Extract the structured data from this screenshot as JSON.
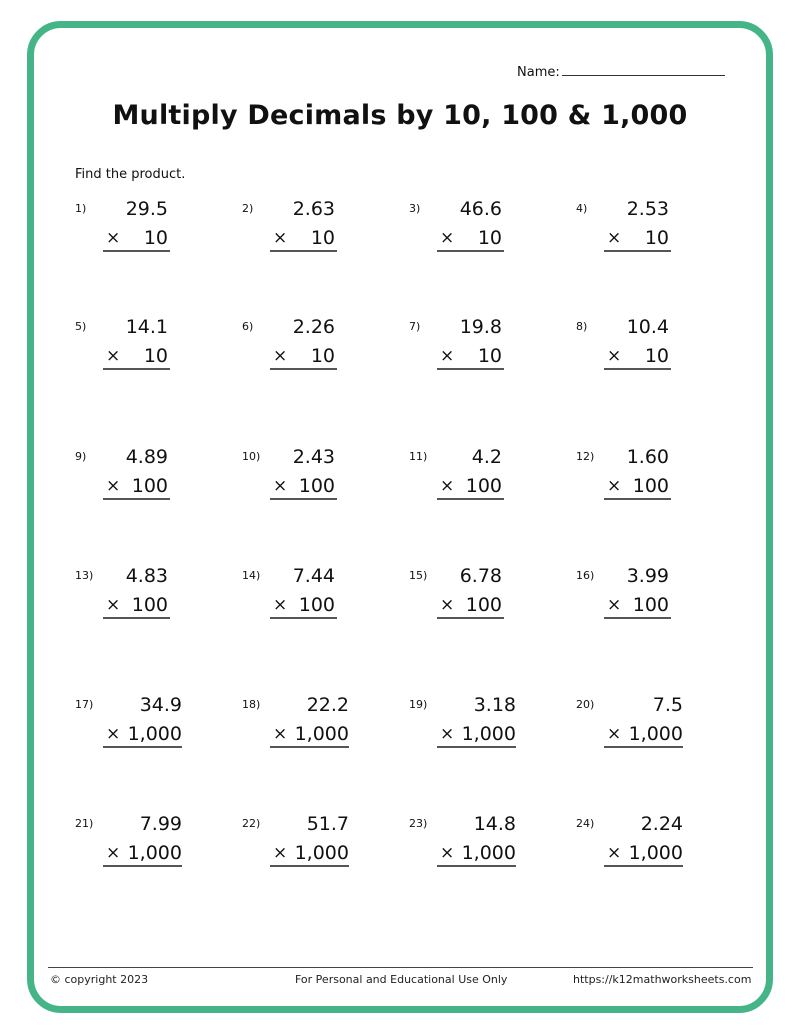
{
  "header": {
    "name_label": "Name:",
    "title": "Multiply Decimals by 10, 100 & 1,000",
    "instructions": "Find the product."
  },
  "operator": "×",
  "problems": [
    {
      "n": "1)",
      "a": "29.5",
      "b": "10"
    },
    {
      "n": "2)",
      "a": "2.63",
      "b": "10"
    },
    {
      "n": "3)",
      "a": "46.6",
      "b": "10"
    },
    {
      "n": "4)",
      "a": "2.53",
      "b": "10"
    },
    {
      "n": "5)",
      "a": "14.1",
      "b": "10"
    },
    {
      "n": "6)",
      "a": "2.26",
      "b": "10"
    },
    {
      "n": "7)",
      "a": "19.8",
      "b": "10"
    },
    {
      "n": "8)",
      "a": "10.4",
      "b": "10"
    },
    {
      "n": "9)",
      "a": "4.89",
      "b": "100"
    },
    {
      "n": "10)",
      "a": "2.43",
      "b": "100"
    },
    {
      "n": "11)",
      "a": "4.2",
      "b": "100"
    },
    {
      "n": "12)",
      "a": "1.60",
      "b": "100"
    },
    {
      "n": "13)",
      "a": "4.83",
      "b": "100"
    },
    {
      "n": "14)",
      "a": "7.44",
      "b": "100"
    },
    {
      "n": "15)",
      "a": "6.78",
      "b": "100"
    },
    {
      "n": "16)",
      "a": "3.99",
      "b": "100"
    },
    {
      "n": "17)",
      "a": "34.9",
      "b": "1,000"
    },
    {
      "n": "18)",
      "a": "22.2",
      "b": "1,000"
    },
    {
      "n": "19)",
      "a": "3.18",
      "b": "1,000"
    },
    {
      "n": "20)",
      "a": "7.5",
      "b": "1,000"
    },
    {
      "n": "21)",
      "a": "7.99",
      "b": "1,000"
    },
    {
      "n": "22)",
      "a": "51.7",
      "b": "1,000"
    },
    {
      "n": "23)",
      "a": "14.8",
      "b": "1,000"
    },
    {
      "n": "24)",
      "a": "2.24",
      "b": "1,000"
    }
  ],
  "footer": {
    "copyright": "© copyright 2023",
    "usage": "For Personal and Educational Use Only",
    "url": "https://k12mathworksheets.com"
  },
  "colors": {
    "border": "#45b486"
  }
}
